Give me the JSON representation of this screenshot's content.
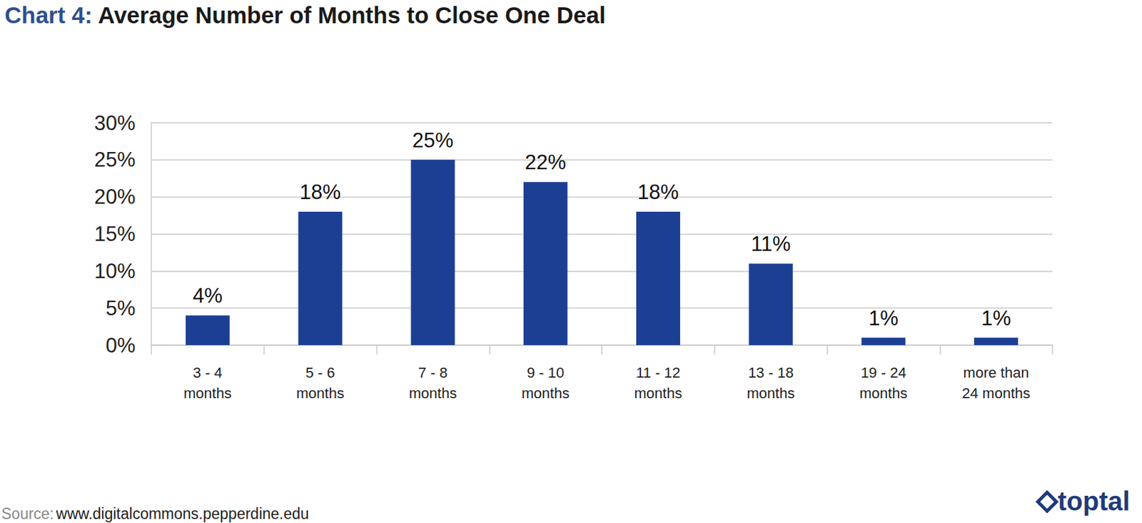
{
  "chart_data": {
    "type": "bar",
    "title": "Chart 4: Average Number of Months to Close One Deal",
    "categories": [
      "3 - 4\nmonths",
      "5 - 6\nmonths",
      "7 - 8\nmonths",
      "9 - 10\nmonths",
      "11 - 12\nmonths",
      "13 - 18\nmonths",
      "19 - 24\nmonths",
      "more than\n24 months"
    ],
    "values": [
      4,
      18,
      25,
      22,
      18,
      11,
      1,
      1
    ],
    "value_labels": [
      "4%",
      "18%",
      "25%",
      "22%",
      "18%",
      "11%",
      "1%",
      "1%"
    ],
    "color": "#1c3f94",
    "ylim": [
      0,
      30
    ],
    "yticks": [
      {
        "value": 0,
        "label": "0%"
      },
      {
        "value": 5,
        "label": "5%"
      },
      {
        "value": 10,
        "label": "10%"
      },
      {
        "value": 15,
        "label": "15%"
      },
      {
        "value": 20,
        "label": "20%"
      },
      {
        "value": 25,
        "label": "25%"
      },
      {
        "value": 30,
        "label": "30%"
      }
    ],
    "grid": true,
    "data_labels": true,
    "annotations": [
      {
        "text": "Source:"
      },
      {
        "text": "www.digitalcommons.pepperdine.edu"
      },
      {
        "text": "toptal"
      }
    ]
  }
}
